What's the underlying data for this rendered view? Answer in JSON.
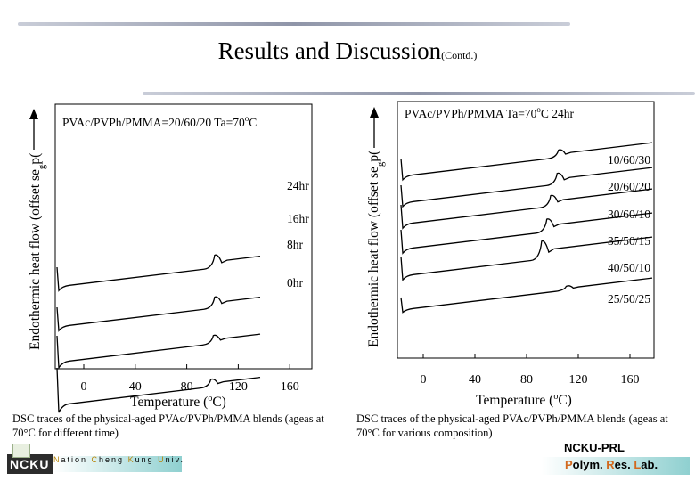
{
  "slide": {
    "title": "Results and Discussion",
    "title_suffix": "(Contd.)"
  },
  "chart_data": [
    {
      "type": "line",
      "title": "PVAc/PVPh/PMMA=20/60/20  Ta=70",
      "title_unit_sup": "o",
      "title_unit": "C",
      "xlabel": "Temperature (",
      "xlabel_unit_sup": "o",
      "xlabel_unit": "C)",
      "ylabel": "Endothermic heat flow (offset se",
      "ylabel_tail": "g",
      "ylabel_tail2": "p(",
      "xlim": [
        -18,
        178
      ],
      "xticks": [
        0,
        40,
        80,
        120,
        160
      ],
      "series": [
        {
          "name": "24hr",
          "transition_c": 103
        },
        {
          "name": "16hr",
          "transition_c": 103
        },
        {
          "name": "8hr",
          "transition_c": 102
        },
        {
          "name": "0hr",
          "transition_c": 100
        }
      ]
    },
    {
      "type": "line",
      "title": "PVAc/PVPh/PMMA Ta=70",
      "title_unit_sup": "o",
      "title_unit": "C 24hr",
      "xlabel": "Temperature (",
      "xlabel_unit_sup": "o",
      "xlabel_unit": "C)",
      "ylabel": "Endothermic heat flow (offset se",
      "ylabel_tail": "g",
      "ylabel_tail2": "p(",
      "xlim": [
        -18,
        180
      ],
      "xticks": [
        0,
        40,
        80,
        120,
        160
      ],
      "series": [
        {
          "name": "10/60/30",
          "transition_c": 106
        },
        {
          "name": "20/60/20",
          "transition_c": 105
        },
        {
          "name": "30/60/10",
          "transition_c": 100
        },
        {
          "name": "35/50/15",
          "transition_c": 97
        },
        {
          "name": "40/50/10",
          "transition_c": 93
        },
        {
          "name": "25/50/25",
          "transition_c": 112
        }
      ]
    }
  ],
  "captions": {
    "left": "DSC traces of the physical-aged PVAc/PVPh/PMMA blends (ageas at 70°C for different time)",
    "right": "DSC traces of the physical-aged PVAc/PVPh/PMMA blends (ageas at 70°C for various composition)"
  },
  "footer": {
    "logo_text": "NCKU",
    "university": "Nation Cheng Kung Univ.",
    "lab_short": "NCKU-PRL",
    "lab_name": "Polym. Res. Lab."
  },
  "colors": {
    "accent_bar": "#8f95a8",
    "logo_bg": "#2c2c2c",
    "footer_bar": "#8fd0d0"
  }
}
